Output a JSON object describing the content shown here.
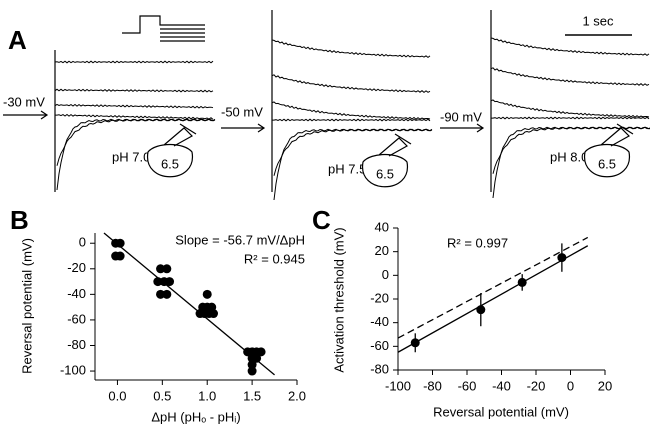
{
  "panel_a": {
    "label": "A",
    "voltages": [
      "-30 mV",
      "-50 mV",
      "-90 mV"
    ],
    "ph": [
      "pH 7.0",
      "pH 7.5",
      "pH 8.0"
    ],
    "pipette": [
      "6.5",
      "6.5",
      "6.5"
    ],
    "scale_bar": "1 sec"
  },
  "chart_data": [
    {
      "type": "scatter",
      "panel": "B",
      "x_label": "ΔpH (pHₒ - pHᵢ)",
      "y_label": "Reversal potential (mV)",
      "annotations": [
        "Slope = -56.7 mV/ΔpH",
        "R² = 0.945"
      ],
      "xlim": [
        -0.25,
        2.0
      ],
      "ylim": [
        -107,
        8
      ],
      "xticks": [
        {
          "value": 0,
          "label": "0.0"
        },
        {
          "value": 0.5,
          "label": "0.5"
        },
        {
          "value": 1,
          "label": "1.0"
        },
        {
          "value": 1.5,
          "label": "1.5"
        },
        {
          "value": 2,
          "label": "2.0"
        }
      ],
      "yticks": [
        0,
        -20,
        -40,
        -60,
        -80,
        -100
      ],
      "series": [
        {
          "color": "#000000",
          "x": [
            -0.02,
            0.03,
            -0.02,
            0.03,
            0.48,
            0.55,
            0.45,
            0.52,
            0.58,
            0.48,
            0.55,
            1.0,
            0.95,
            1.0,
            1.05,
            0.92,
            0.97,
            1.02,
            1.07,
            1.45,
            1.5,
            1.55,
            1.6,
            1.5,
            1.55,
            1.5,
            1.5
          ],
          "y": [
            0,
            0,
            -10,
            -10,
            -20,
            -20,
            -30,
            -30,
            -30,
            -40,
            -40,
            -40,
            -50,
            -50,
            -50,
            -55,
            -55,
            -55,
            -55,
            -85,
            -85,
            -85,
            -85,
            -90,
            -90,
            -95,
            -100
          ]
        }
      ],
      "fit_lines": [
        {
          "x": [
            -0.15,
            1.75
          ],
          "y": [
            8,
            -103
          ],
          "dashed": false
        }
      ]
    },
    {
      "type": "errorbar",
      "panel": "C",
      "x_label": "Reversal potential (mV)",
      "y_label": "Activation threshold (mV)",
      "annotations": [
        "R² = 0.997"
      ],
      "xlim": [
        -100,
        20
      ],
      "ylim": [
        -80,
        40
      ],
      "xticks": [
        -100,
        -80,
        -60,
        -40,
        -20,
        0,
        20
      ],
      "yticks": [
        -80,
        -60,
        -40,
        -20,
        0,
        20,
        40
      ],
      "series": [
        {
          "color": "#000000",
          "x": [
            -90,
            -52,
            -28,
            -5
          ],
          "y": [
            -57,
            -29,
            -6,
            15
          ],
          "errors": [
            8,
            14,
            7,
            12
          ]
        }
      ],
      "fit_lines": [
        {
          "x": [
            -100,
            10
          ],
          "y": [
            -65,
            25
          ],
          "dashed": false
        },
        {
          "x": [
            -100,
            10
          ],
          "y": [
            -53,
            32
          ],
          "dashed": true
        }
      ]
    }
  ]
}
